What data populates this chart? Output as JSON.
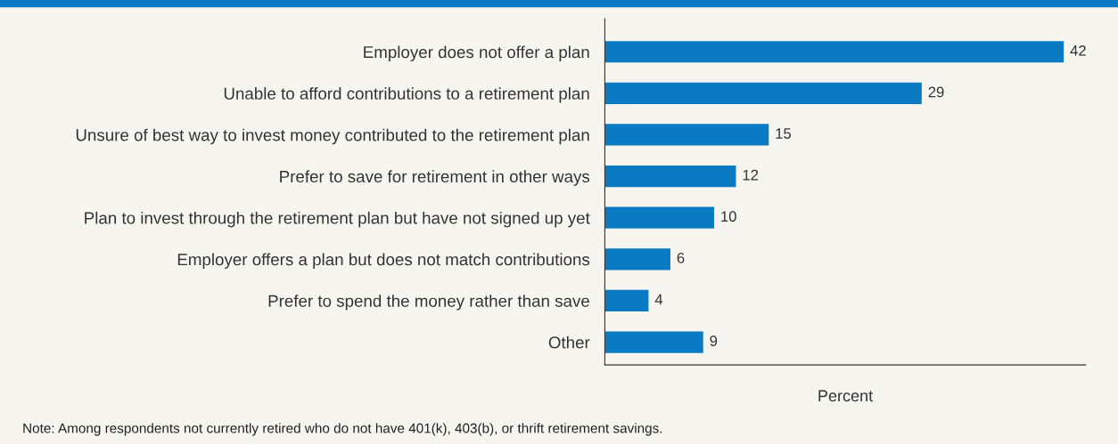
{
  "chart_data": {
    "type": "bar",
    "orientation": "horizontal",
    "xlabel": "Percent",
    "categories": [
      "Employer does not offer a plan",
      "Unable to afford contributions to a retirement plan",
      "Unsure of best way to invest money contributed to the retirement plan",
      "Prefer to save for retirement in other ways",
      "Plan to invest through the retirement plan but have not signed up yet",
      "Employer offers a plan but does not match contributions",
      "Prefer to spend the money rather than save",
      "Other"
    ],
    "values": [
      42,
      29,
      15,
      12,
      10,
      6,
      4,
      9
    ],
    "color": "#0a7bc2",
    "data_labels": true,
    "xlim": [
      0,
      44
    ],
    "tick_labels": "y",
    "grid": false,
    "legend": false,
    "annotations": [
      "Note: Among respondents not currently retired who do not have 401(k), 403(b), or thrift retirement savings."
    ]
  }
}
